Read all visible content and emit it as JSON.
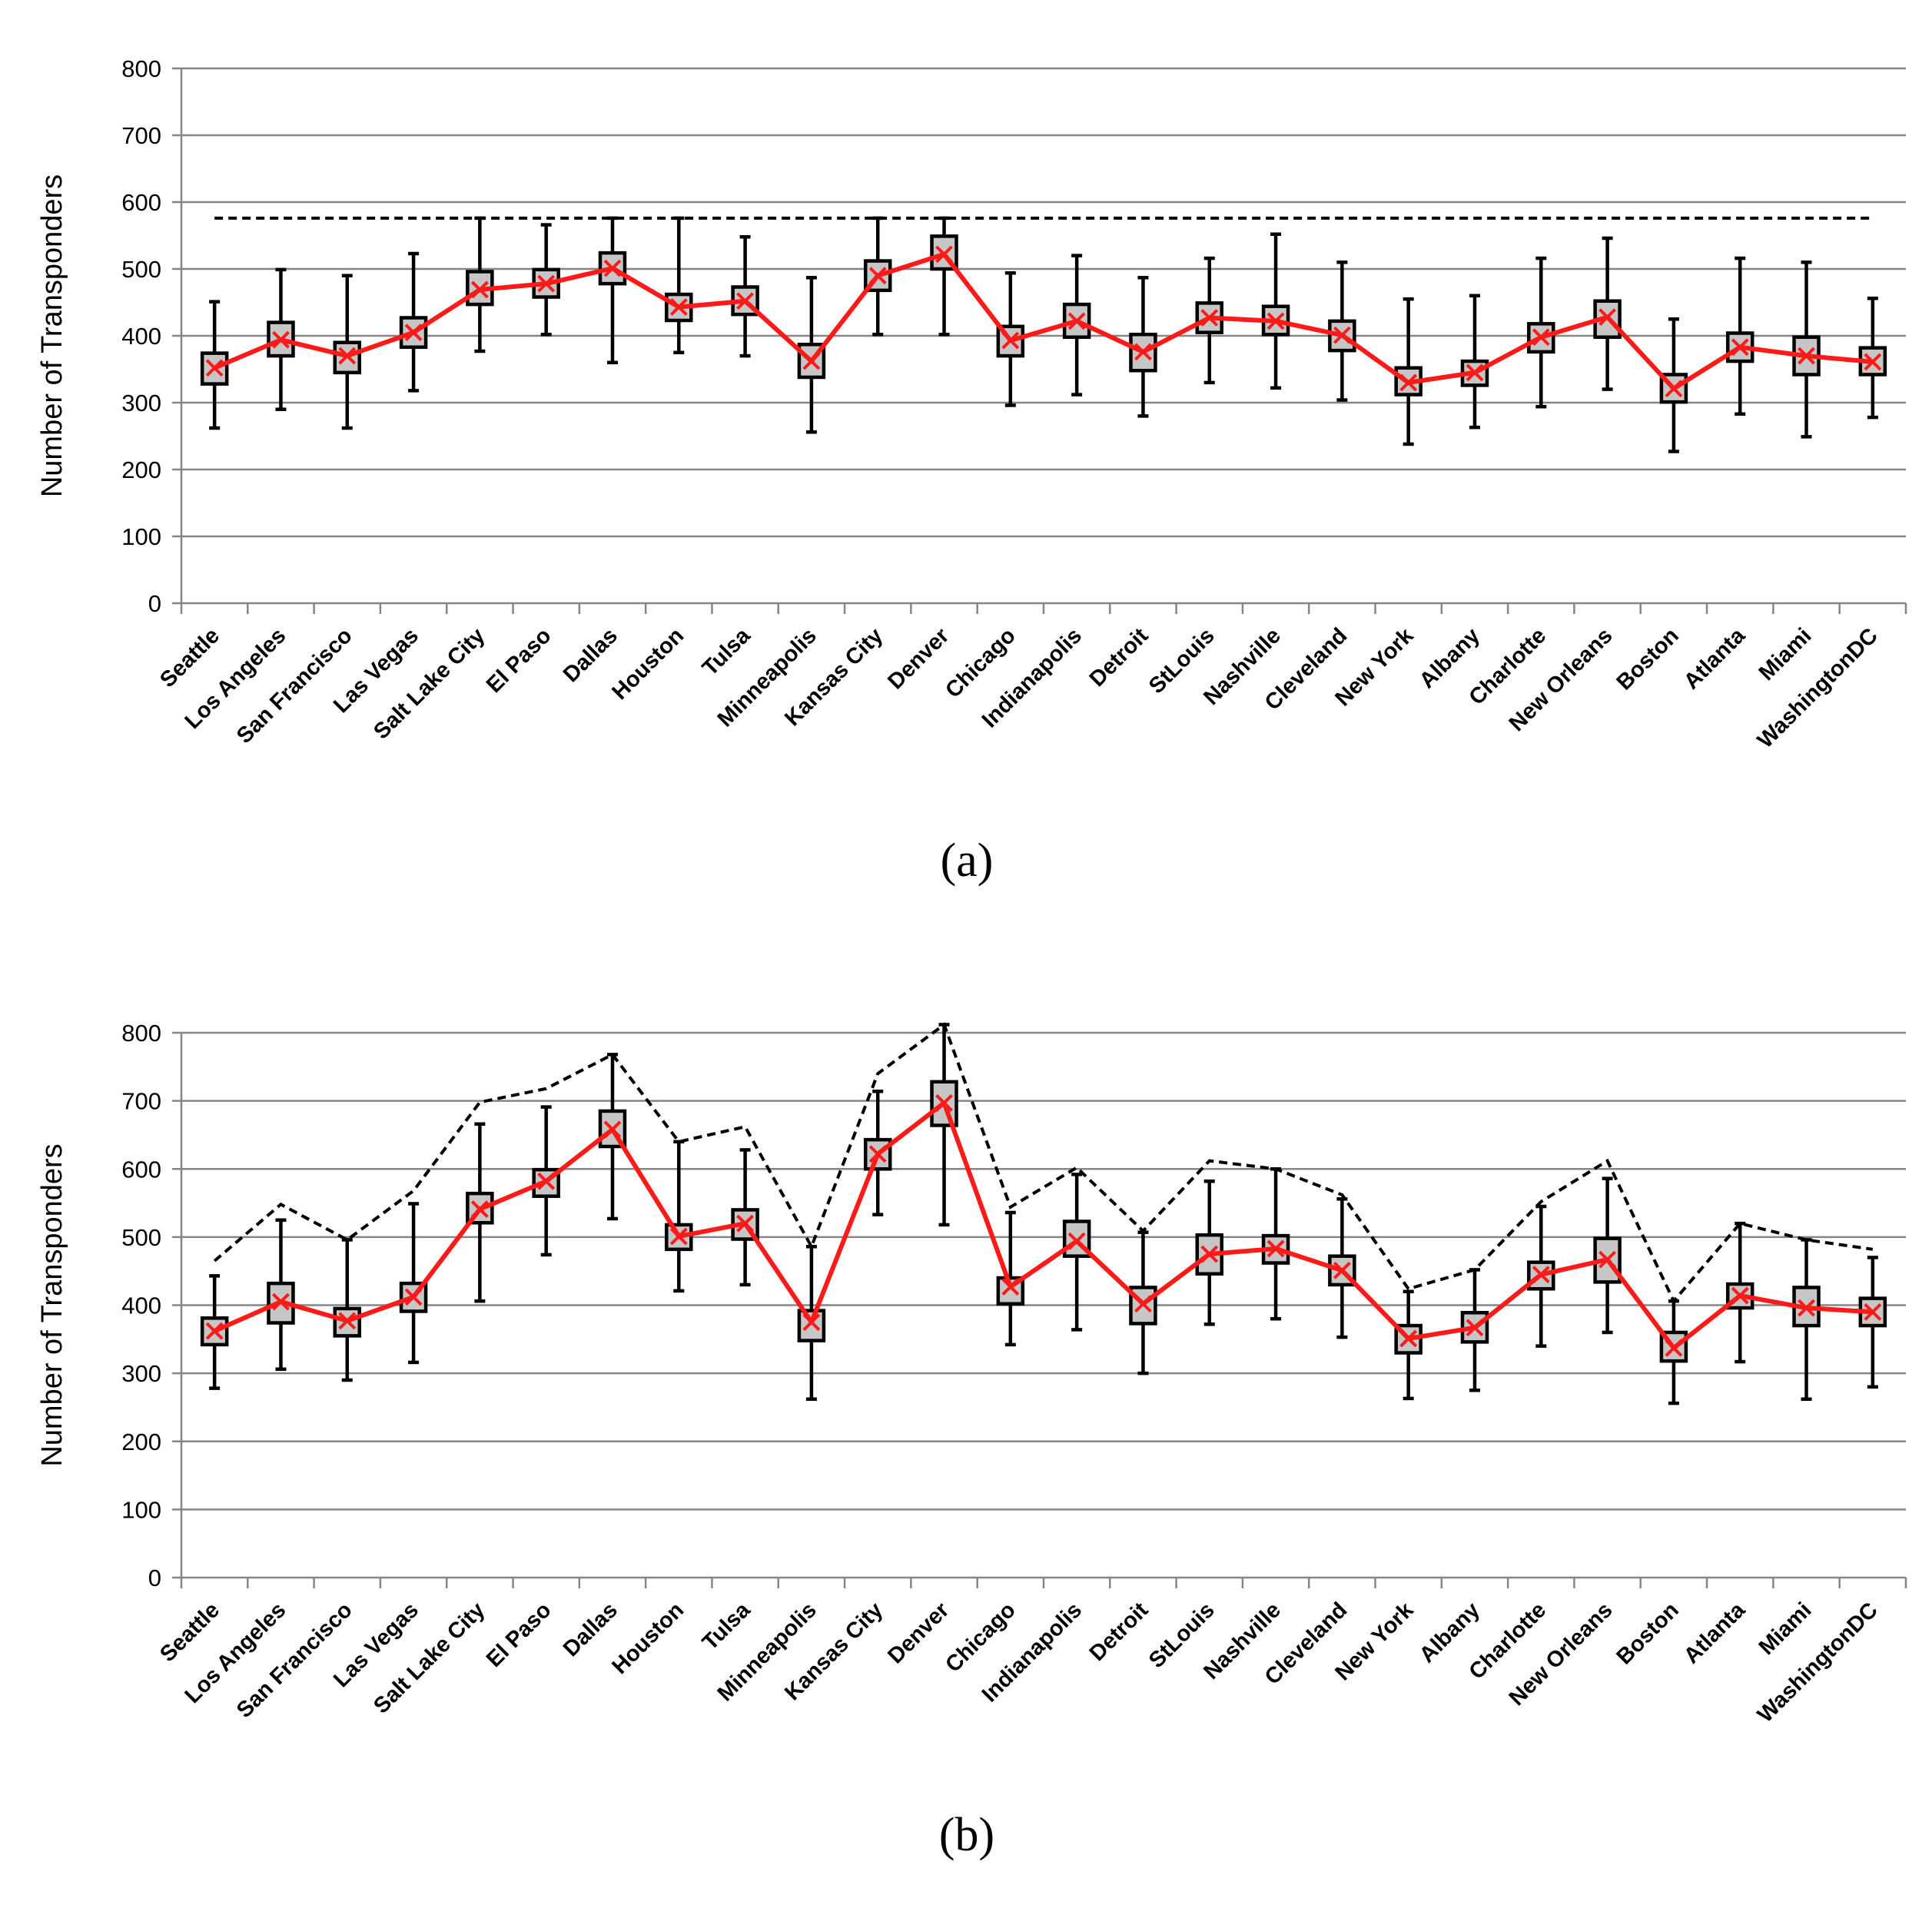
{
  "chart_data": [
    {
      "type": "box",
      "panel_label": "(a)",
      "ylabel": "Number of Transponders",
      "ylim": [
        0,
        800
      ],
      "yticks": [
        "0",
        "100",
        "200",
        "300",
        "400",
        "500",
        "600",
        "700",
        "800"
      ],
      "categories": [
        "Seattle",
        "Los Angeles",
        "San Francisco",
        "Las Vegas",
        "Salt Lake City",
        "El Paso",
        "Dallas",
        "Houston",
        "Tulsa",
        "Minneapolis",
        "Kansas City",
        "Denver",
        "Chicago",
        "Indianapolis",
        "Detroit",
        "StLouis",
        "Nashville",
        "Cleveland",
        "New York",
        "Albany",
        "Charlotte",
        "New Orleans",
        "Boston",
        "Atlanta",
        "Miami",
        "WashingtonDC"
      ],
      "min": [
        262,
        290,
        262,
        318,
        377,
        402,
        360,
        375,
        370,
        256,
        402,
        402,
        296,
        312,
        280,
        330,
        322,
        304,
        238,
        263,
        294,
        320,
        227,
        283,
        249,
        278
      ],
      "q1": [
        328,
        370,
        345,
        383,
        447,
        458,
        478,
        423,
        432,
        338,
        468,
        500,
        370,
        398,
        348,
        405,
        402,
        378,
        312,
        326,
        376,
        398,
        301,
        362,
        342,
        342
      ],
      "q3": [
        374,
        420,
        390,
        427,
        496,
        499,
        524,
        462,
        473,
        387,
        512,
        549,
        414,
        447,
        402,
        449,
        444,
        422,
        352,
        362,
        418,
        452,
        342,
        404,
        398,
        382
      ],
      "max": [
        451,
        499,
        490,
        523,
        576,
        566,
        576,
        576,
        548,
        487,
        576,
        576,
        494,
        520,
        487,
        516,
        552,
        510,
        455,
        460,
        516,
        546,
        425,
        516,
        510,
        456
      ],
      "mean": [
        352,
        394,
        370,
        405,
        469,
        478,
        501,
        443,
        452,
        362,
        490,
        522,
        393,
        422,
        376,
        427,
        422,
        401,
        330,
        345,
        398,
        428,
        321,
        383,
        370,
        361
      ],
      "threshold": [
        576,
        576,
        576,
        576,
        576,
        576,
        576,
        576,
        576,
        576,
        576,
        576,
        576,
        576,
        576,
        576,
        576,
        576,
        576,
        576,
        576,
        576,
        576,
        576,
        576,
        576
      ]
    },
    {
      "type": "box",
      "panel_label": "(b)",
      "ylabel": "Number of Transponders",
      "ylim": [
        0,
        800
      ],
      "yticks": [
        "0",
        "100",
        "200",
        "300",
        "400",
        "500",
        "600",
        "700",
        "800"
      ],
      "categories": [
        "Seattle",
        "Los Angeles",
        "San Francisco",
        "Las Vegas",
        "Salt Lake City",
        "El Paso",
        "Dallas",
        "Houston",
        "Tulsa",
        "Minneapolis",
        "Kansas City",
        "Denver",
        "Chicago",
        "Indianapolis",
        "Detroit",
        "StLouis",
        "Nashville",
        "Cleveland",
        "New York",
        "Albany",
        "Charlotte",
        "New Orleans",
        "Boston",
        "Atlanta",
        "Miami",
        "WashingtonDC"
      ],
      "min": [
        278,
        306,
        290,
        316,
        406,
        474,
        527,
        421,
        430,
        262,
        533,
        518,
        342,
        364,
        300,
        372,
        380,
        353,
        263,
        275,
        340,
        360,
        256,
        317,
        262,
        280
      ],
      "q1": [
        342,
        374,
        355,
        391,
        521,
        560,
        633,
        482,
        497,
        348,
        600,
        664,
        402,
        472,
        373,
        446,
        462,
        430,
        330,
        346,
        424,
        434,
        318,
        396,
        370,
        370
      ],
      "q3": [
        381,
        432,
        395,
        432,
        564,
        599,
        685,
        518,
        540,
        392,
        643,
        728,
        440,
        523,
        426,
        503,
        502,
        472,
        370,
        389,
        463,
        498,
        360,
        431,
        426,
        410
      ],
      "max": [
        443,
        525,
        496,
        549,
        666,
        691,
        768,
        640,
        628,
        486,
        714,
        812,
        536,
        592,
        507,
        582,
        600,
        556,
        420,
        452,
        545,
        586,
        406,
        520,
        496,
        470
      ],
      "mean": [
        362,
        405,
        377,
        412,
        541,
        582,
        658,
        501,
        520,
        375,
        622,
        697,
        427,
        494,
        402,
        475,
        483,
        451,
        351,
        367,
        445,
        467,
        337,
        414,
        396,
        390
      ],
      "threshold": [
        465,
        548,
        496,
        568,
        698,
        718,
        768,
        640,
        662,
        486,
        740,
        812,
        544,
        602,
        509,
        612,
        600,
        562,
        424,
        452,
        552,
        612,
        406,
        520,
        496,
        482
      ]
    }
  ],
  "colors": {
    "mean_line": "#ff1a1a",
    "box_fill": "#c6c6c6",
    "grid": "#868686",
    "ink": "#000000"
  }
}
